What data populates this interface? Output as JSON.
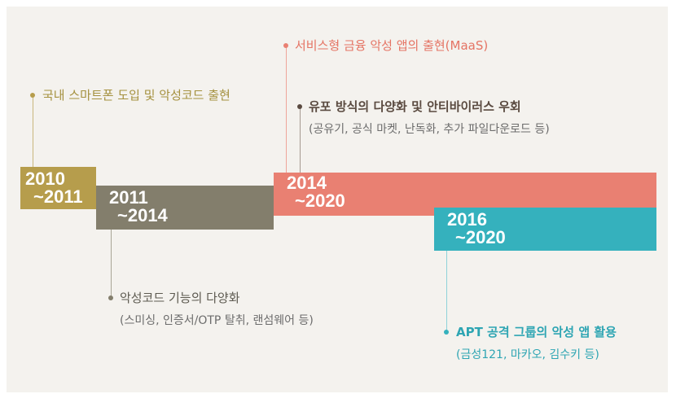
{
  "colors": {
    "bar_2010": "#b69d4c",
    "bar_2011": "#837e6c",
    "bar_2014": "#e98072",
    "bar_2016": "#35b1bd",
    "text_2010": "#a5913f",
    "text_2011": "#5d5a50",
    "text_2014a": "#e57464",
    "text_2014b": "#5a4a40",
    "text_2016": "#2ea5b3"
  },
  "periods": [
    {
      "start": "2010",
      "end": "~2011"
    },
    {
      "start": "2011",
      "end": "~2014"
    },
    {
      "start": "2014",
      "end": "~2020"
    },
    {
      "start": "2016",
      "end": "~2020"
    }
  ],
  "annotations": {
    "p2010": {
      "title": "국내 스마트폰 도입 및 악성코드 출현"
    },
    "p2011": {
      "title": "악성코드 기능의 다양화",
      "sub": "(스미싱, 인증서/OTP 탈취, 랜섬웨어 등)"
    },
    "p2014a": {
      "title": "서비스형 금융 악성 앱의 출현(MaaS)"
    },
    "p2014b": {
      "title": "유포 방식의 다양화 및 안티바이러스 우회",
      "sub": "(공유기, 공식 마켓, 난독화, 추가 파일다운로드 등)"
    },
    "p2016": {
      "title": "APT 공격 그룹의 악성 앱 활용",
      "sub": "(금성121, 마카오, 김수키 등)"
    }
  }
}
